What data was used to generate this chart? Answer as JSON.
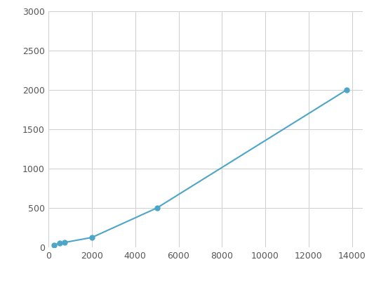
{
  "x": [
    250,
    500,
    750,
    2000,
    5000,
    13750
  ],
  "y": [
    30,
    50,
    62,
    125,
    500,
    2000
  ],
  "line_color": "#4da6c8",
  "marker_color": "#4da6c8",
  "marker_size": 5,
  "line_width": 1.5,
  "xlim": [
    0,
    14500
  ],
  "ylim": [
    0,
    3000
  ],
  "xticks": [
    0,
    2000,
    4000,
    6000,
    8000,
    10000,
    12000,
    14000
  ],
  "yticks": [
    0,
    500,
    1000,
    1500,
    2000,
    2500,
    3000
  ],
  "grid_color": "#d0d0d0",
  "background_color": "#ffffff",
  "tick_labelsize": 9,
  "tick_color": "#555555"
}
